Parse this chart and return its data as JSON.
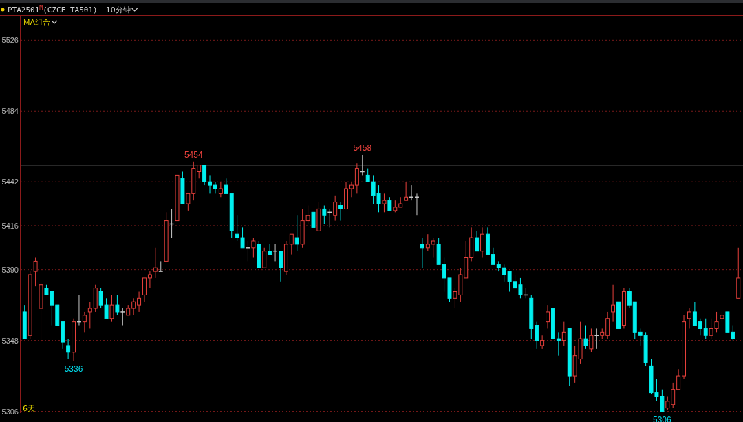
{
  "chart_data": {
    "type": "candlestick",
    "title": "PTA2501$^{M}$(CZCE TA501)",
    "annotations": [
      "10分钟",
      "MA组合",
      "6天",
      {
        "text": "5454",
        "y": 5454
      },
      {
        "text": "5458",
        "y": 5458
      },
      {
        "text": "5336",
        "y": 5336
      },
      {
        "text": "5306",
        "y": 5306
      }
    ],
    "categories": [
      null,
      null,
      null,
      null,
      null,
      null,
      null,
      null,
      null,
      null,
      null,
      null,
      null,
      null,
      null,
      null,
      null,
      null,
      null,
      null,
      null,
      null,
      null,
      null,
      null,
      null,
      null,
      null,
      null,
      null,
      null,
      null,
      null,
      null,
      null,
      null,
      null,
      null,
      null,
      null,
      null,
      null,
      null,
      null,
      null,
      null,
      null,
      null,
      null,
      null,
      null,
      null,
      null,
      null,
      null,
      null,
      null,
      null,
      null,
      null,
      null,
      null,
      null,
      null,
      null,
      null,
      null,
      null,
      null,
      null,
      null,
      null,
      null,
      null,
      null,
      null,
      null,
      null,
      null,
      null,
      null,
      null,
      null,
      null,
      null,
      null,
      null,
      null,
      null,
      null,
      null,
      null,
      null,
      null,
      null,
      null,
      null,
      null,
      null,
      null,
      null,
      null,
      null,
      null,
      null,
      null,
      null,
      null,
      null,
      null,
      null,
      null,
      null,
      null,
      null,
      null,
      null,
      null,
      null,
      null,
      null,
      null,
      null,
      null,
      null,
      null,
      null,
      null,
      null,
      null,
      null,
      null
    ],
    "ohlc": [
      [
        5365,
        5369,
        5349,
        5349
      ],
      [
        5351,
        5389,
        5349,
        5387
      ],
      [
        5389,
        5397,
        5380,
        5395
      ],
      [
        5367,
        5383,
        5347,
        5381
      ],
      [
        5379,
        5381,
        5375,
        5375
      ],
      [
        5377,
        5377,
        5357,
        5369
      ],
      [
        5369,
        5369,
        5357,
        5357
      ],
      [
        5359,
        5359,
        5343,
        5347
      ],
      [
        5345,
        5349,
        5337,
        5341
      ],
      [
        5341,
        5361,
        5336,
        5359
      ],
      [
        5359,
        5375,
        5357,
        5359
      ],
      [
        5359,
        5365,
        5353,
        5363
      ],
      [
        5365,
        5371,
        5355,
        5367
      ],
      [
        5367,
        5381,
        5365,
        5379
      ],
      [
        5377,
        5379,
        5367,
        5369
      ],
      [
        5369,
        5373,
        5361,
        5361
      ],
      [
        5361,
        5375,
        5359,
        5369
      ],
      [
        5369,
        5375,
        5363,
        5365
      ],
      [
        5365,
        5367,
        5357,
        5365
      ],
      [
        5363,
        5369,
        5363,
        5367
      ],
      [
        5367,
        5373,
        5363,
        5371
      ],
      [
        5369,
        5377,
        5365,
        5373
      ],
      [
        5375,
        5385,
        5371,
        5385
      ],
      [
        5385,
        5389,
        5379,
        5387
      ],
      [
        5389,
        5403,
        5385,
        5391
      ],
      [
        5389,
        5395,
        5389,
        5389
      ],
      [
        5395,
        5424,
        5395,
        5419
      ],
      [
        5417,
        5426,
        5409,
        5417
      ],
      [
        5419,
        5446,
        5417,
        5446
      ],
      [
        5444,
        5448,
        5429,
        5429
      ],
      [
        5429,
        5435,
        5425,
        5435
      ],
      [
        5435,
        5454,
        5431,
        5450
      ],
      [
        5448,
        5452,
        5444,
        5452
      ],
      [
        5452,
        5452,
        5440,
        5442
      ],
      [
        5442,
        5446,
        5435,
        5440
      ],
      [
        5440,
        5442,
        5435,
        5438
      ],
      [
        5435,
        5442,
        5433,
        5438
      ],
      [
        5440,
        5444,
        5435,
        5435
      ],
      [
        5435,
        5435,
        5409,
        5413
      ],
      [
        5411,
        5422,
        5407,
        5409
      ],
      [
        5409,
        5415,
        5403,
        5403
      ],
      [
        5403,
        5407,
        5395,
        5403
      ],
      [
        5403,
        5409,
        5397,
        5407
      ],
      [
        5405,
        5407,
        5391,
        5391
      ],
      [
        5391,
        5403,
        5391,
        5401
      ],
      [
        5401,
        5405,
        5399,
        5399
      ],
      [
        5401,
        5405,
        5395,
        5401
      ],
      [
        5401,
        5401,
        5383,
        5391
      ],
      [
        5389,
        5407,
        5387,
        5405
      ],
      [
        5405,
        5411,
        5399,
        5411
      ],
      [
        5409,
        5422,
        5401,
        5405
      ],
      [
        5405,
        5426,
        5403,
        5419
      ],
      [
        5419,
        5428,
        5417,
        5422
      ],
      [
        5424,
        5424,
        5415,
        5415
      ],
      [
        5413,
        5430,
        5413,
        5426
      ],
      [
        5426,
        5428,
        5417,
        5422
      ],
      [
        5424,
        5426,
        5415,
        5424
      ],
      [
        5422,
        5434,
        5419,
        5430
      ],
      [
        5428,
        5430,
        5419,
        5426
      ],
      [
        5426,
        5442,
        5426,
        5438
      ],
      [
        5438,
        5442,
        5433,
        5440
      ],
      [
        5440,
        5453,
        5435,
        5450
      ],
      [
        5448,
        5458,
        5446,
        5448
      ],
      [
        5446,
        5450,
        5442,
        5442
      ],
      [
        5442,
        5446,
        5429,
        5434
      ],
      [
        5435,
        5440,
        5424,
        5429
      ],
      [
        5429,
        5435,
        5424,
        5431
      ],
      [
        5431,
        5433,
        5425,
        5425
      ],
      [
        5425,
        5431,
        5424,
        5427
      ],
      [
        5427,
        5433,
        5427,
        5429
      ],
      [
        5431,
        5442,
        5431,
        5433
      ],
      [
        5433,
        5440,
        5431,
        5433
      ],
      [
        5433,
        5435,
        5422,
        5433
      ],
      [
        5405,
        5409,
        5391,
        5403
      ],
      [
        5403,
        5411,
        5401,
        5405
      ],
      [
        5405,
        5409,
        5397,
        5407
      ],
      [
        5405,
        5409,
        5393,
        5393
      ],
      [
        5393,
        5397,
        5377,
        5385
      ],
      [
        5385,
        5385,
        5371,
        5373
      ],
      [
        5373,
        5379,
        5367,
        5377
      ],
      [
        5375,
        5391,
        5371,
        5387
      ],
      [
        5385,
        5407,
        5385,
        5397
      ],
      [
        5397,
        5415,
        5395,
        5409
      ],
      [
        5409,
        5413,
        5401,
        5401
      ],
      [
        5401,
        5415,
        5397,
        5411
      ],
      [
        5411,
        5415,
        5399,
        5399
      ],
      [
        5399,
        5403,
        5393,
        5393
      ],
      [
        5393,
        5395,
        5389,
        5391
      ],
      [
        5391,
        5393,
        5383,
        5387
      ],
      [
        5389,
        5389,
        5377,
        5383
      ],
      [
        5383,
        5387,
        5379,
        5379
      ],
      [
        5381,
        5385,
        5373,
        5375
      ],
      [
        5375,
        5379,
        5373,
        5375
      ],
      [
        5373,
        5375,
        5349,
        5355
      ],
      [
        5357,
        5359,
        5343,
        5348
      ],
      [
        5345,
        5351,
        5343,
        5348
      ],
      [
        5359,
        5369,
        5355,
        5365
      ],
      [
        5367,
        5367,
        5349,
        5349
      ],
      [
        5349,
        5353,
        5339,
        5348
      ],
      [
        5348,
        5359,
        5345,
        5353
      ],
      [
        5355,
        5355,
        5321,
        5327
      ],
      [
        5327,
        5345,
        5323,
        5339
      ],
      [
        5337,
        5359,
        5334,
        5349
      ],
      [
        5349,
        5357,
        5343,
        5345
      ],
      [
        5343,
        5355,
        5341,
        5351
      ],
      [
        5351,
        5355,
        5343,
        5351
      ],
      [
        5351,
        5355,
        5349,
        5353
      ],
      [
        5351,
        5365,
        5349,
        5361
      ],
      [
        5365,
        5381,
        5359,
        5369
      ],
      [
        5371,
        5371,
        5355,
        5355
      ],
      [
        5357,
        5379,
        5355,
        5377
      ],
      [
        5377,
        5379,
        5367,
        5369
      ],
      [
        5371,
        5371,
        5349,
        5353
      ],
      [
        5353,
        5355,
        5345,
        5351
      ],
      [
        5351,
        5353,
        5333,
        5335
      ],
      [
        5333,
        5337,
        5316,
        5317
      ],
      [
        5317,
        5325,
        5312,
        5315
      ],
      [
        5315,
        5319,
        5306,
        5306
      ],
      [
        5308,
        5315,
        5307,
        5312
      ],
      [
        5310,
        5323,
        5308,
        5319
      ],
      [
        5319,
        5331,
        5319,
        5327
      ],
      [
        5327,
        5363,
        5325,
        5359
      ],
      [
        5361,
        5367,
        5355,
        5365
      ],
      [
        5365,
        5371,
        5357,
        5357
      ],
      [
        5359,
        5361,
        5351,
        5355
      ],
      [
        5355,
        5361,
        5349,
        5351
      ],
      [
        5351,
        5361,
        5349,
        5355
      ],
      [
        5355,
        5365,
        5353,
        5359
      ],
      [
        5361,
        5365,
        5359,
        5363
      ],
      [
        5365,
        5365,
        5353,
        5353
      ],
      [
        5353,
        5357,
        5348,
        5349
      ],
      [
        5373,
        5403,
        5373,
        5385
      ]
    ],
    "colors": [
      "#00f0f0",
      "#e8413c",
      "#e8413c",
      "#e8413c",
      "#00f0f0",
      "#00f0f0",
      "#00f0f0",
      "#00f0f0",
      "#00f0f0",
      "#e8413c",
      "#c8c8c8",
      "#e8413c",
      "#e8413c",
      "#e8413c",
      "#00f0f0",
      "#00f0f0",
      "#e8413c",
      "#00f0f0",
      "#c8c8c8",
      "#e8413c",
      "#e8413c",
      "#e8413c",
      "#e8413c",
      "#e8413c",
      "#e8413c",
      "#c8c8c8",
      "#e8413c",
      "#c8c8c8",
      "#e8413c",
      "#00f0f0",
      "#e8413c",
      "#e8413c",
      "#e8413c",
      "#00f0f0",
      "#00f0f0",
      "#00f0f0",
      "#e8413c",
      "#00f0f0",
      "#00f0f0",
      "#00f0f0",
      "#00f0f0",
      "#c8c8c8",
      "#e8413c",
      "#00f0f0",
      "#e8413c",
      "#00f0f0",
      "#c8c8c8",
      "#00f0f0",
      "#e8413c",
      "#e8413c",
      "#00f0f0",
      "#e8413c",
      "#e8413c",
      "#00f0f0",
      "#e8413c",
      "#00f0f0",
      "#c8c8c8",
      "#e8413c",
      "#00f0f0",
      "#e8413c",
      "#e8413c",
      "#e8413c",
      "#c8c8c8",
      "#00f0f0",
      "#00f0f0",
      "#00f0f0",
      "#e8413c",
      "#00f0f0",
      "#e8413c",
      "#e8413c",
      "#e8413c",
      "#c8c8c8",
      "#c8c8c8",
      "#00f0f0",
      "#e8413c",
      "#e8413c",
      "#00f0f0",
      "#00f0f0",
      "#00f0f0",
      "#e8413c",
      "#e8413c",
      "#e8413c",
      "#e8413c",
      "#00f0f0",
      "#e8413c",
      "#00f0f0",
      "#00f0f0",
      "#00f0f0",
      "#00f0f0",
      "#00f0f0",
      "#00f0f0",
      "#00f0f0",
      "#c8c8c8",
      "#00f0f0",
      "#00f0f0",
      "#e8413c",
      "#e8413c",
      "#00f0f0",
      "#00f0f0",
      "#e8413c",
      "#00f0f0",
      "#e8413c",
      "#e8413c",
      "#00f0f0",
      "#e8413c",
      "#c8c8c8",
      "#e8413c",
      "#e8413c",
      "#e8413c",
      "#00f0f0",
      "#e8413c",
      "#00f0f0",
      "#00f0f0",
      "#00f0f0",
      "#00f0f0",
      "#00f0f0",
      "#00f0f0",
      "#00f0f0",
      "#e8413c",
      "#e8413c",
      "#e8413c",
      "#e8413c",
      "#e8413c",
      "#00f0f0",
      "#00f0f0",
      "#00f0f0",
      "#e8413c",
      "#e8413c",
      "#e8413c",
      "#00f0f0",
      "#00f0f0",
      "#e8413c"
    ],
    "ylim": [
      5305,
      5540
    ],
    "yticks": [
      5526,
      5484,
      5442,
      5416,
      5390,
      5348,
      5306
    ],
    "grid": "y",
    "ref_lines": [
      {
        "axis": "y",
        "value": 5452,
        "color": "#a0a0a0"
      }
    ]
  }
}
